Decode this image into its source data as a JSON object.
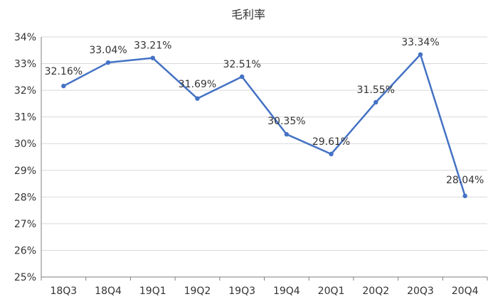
{
  "chart_data": {
    "type": "line",
    "title": "毛利率",
    "categories": [
      "18Q3",
      "18Q4",
      "19Q1",
      "19Q2",
      "19Q3",
      "19Q4",
      "20Q1",
      "20Q2",
      "20Q3",
      "20Q4"
    ],
    "values": [
      32.16,
      33.04,
      33.21,
      31.69,
      32.51,
      30.35,
      29.61,
      31.55,
      33.34,
      28.04
    ],
    "data_labels": [
      "32.16%",
      "33.04%",
      "33.21%",
      "31.69%",
      "32.51%",
      "30.35%",
      "29.61%",
      "31.55%",
      "33.34%",
      "28.04%"
    ],
    "y_ticks": [
      "25%",
      "26%",
      "27%",
      "28%",
      "29%",
      "30%",
      "31%",
      "32%",
      "33%",
      "34%"
    ],
    "ylim": [
      25,
      34
    ],
    "xlabel": "",
    "ylabel": "",
    "grid": true,
    "legend": "none",
    "colors": {
      "line": "#4472C4",
      "grid": "#d9d9d9",
      "axis": "#7f7f7f",
      "text": "#333333"
    }
  }
}
